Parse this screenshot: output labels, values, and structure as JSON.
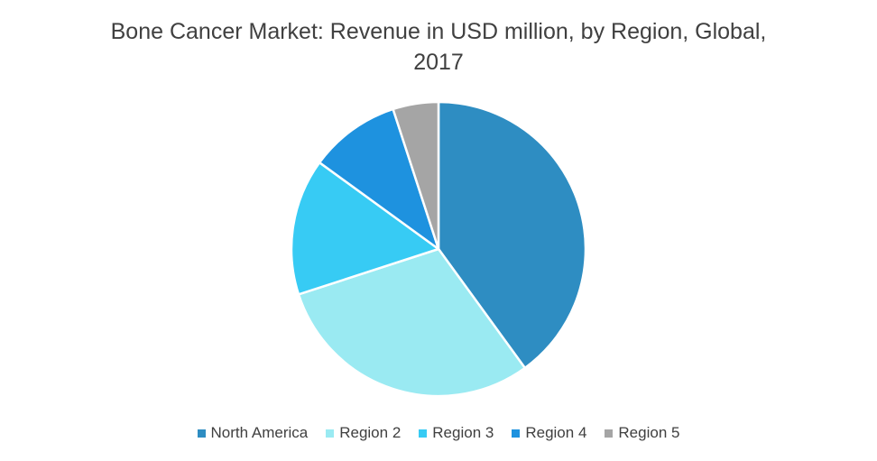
{
  "chart_data": {
    "type": "pie",
    "title_lines": [
      "Bone Cancer Market: Revenue in USD million, by Region, Global,",
      "2017"
    ],
    "title": "Bone Cancer Market: Revenue in USD million, by Region, Global, 2017",
    "categories": [
      "North America",
      "Region 2",
      "Region 3",
      "Region 4",
      "Region 5"
    ],
    "values": [
      40,
      30,
      15,
      10,
      5
    ],
    "colors": [
      "#2e8dc2",
      "#9aeaf2",
      "#37cbf4",
      "#1e92df",
      "#a5a5a5"
    ],
    "start_angle_deg": 0,
    "direction": "clockwise",
    "legend_position": "bottom",
    "slice_border_color": "#ffffff"
  }
}
